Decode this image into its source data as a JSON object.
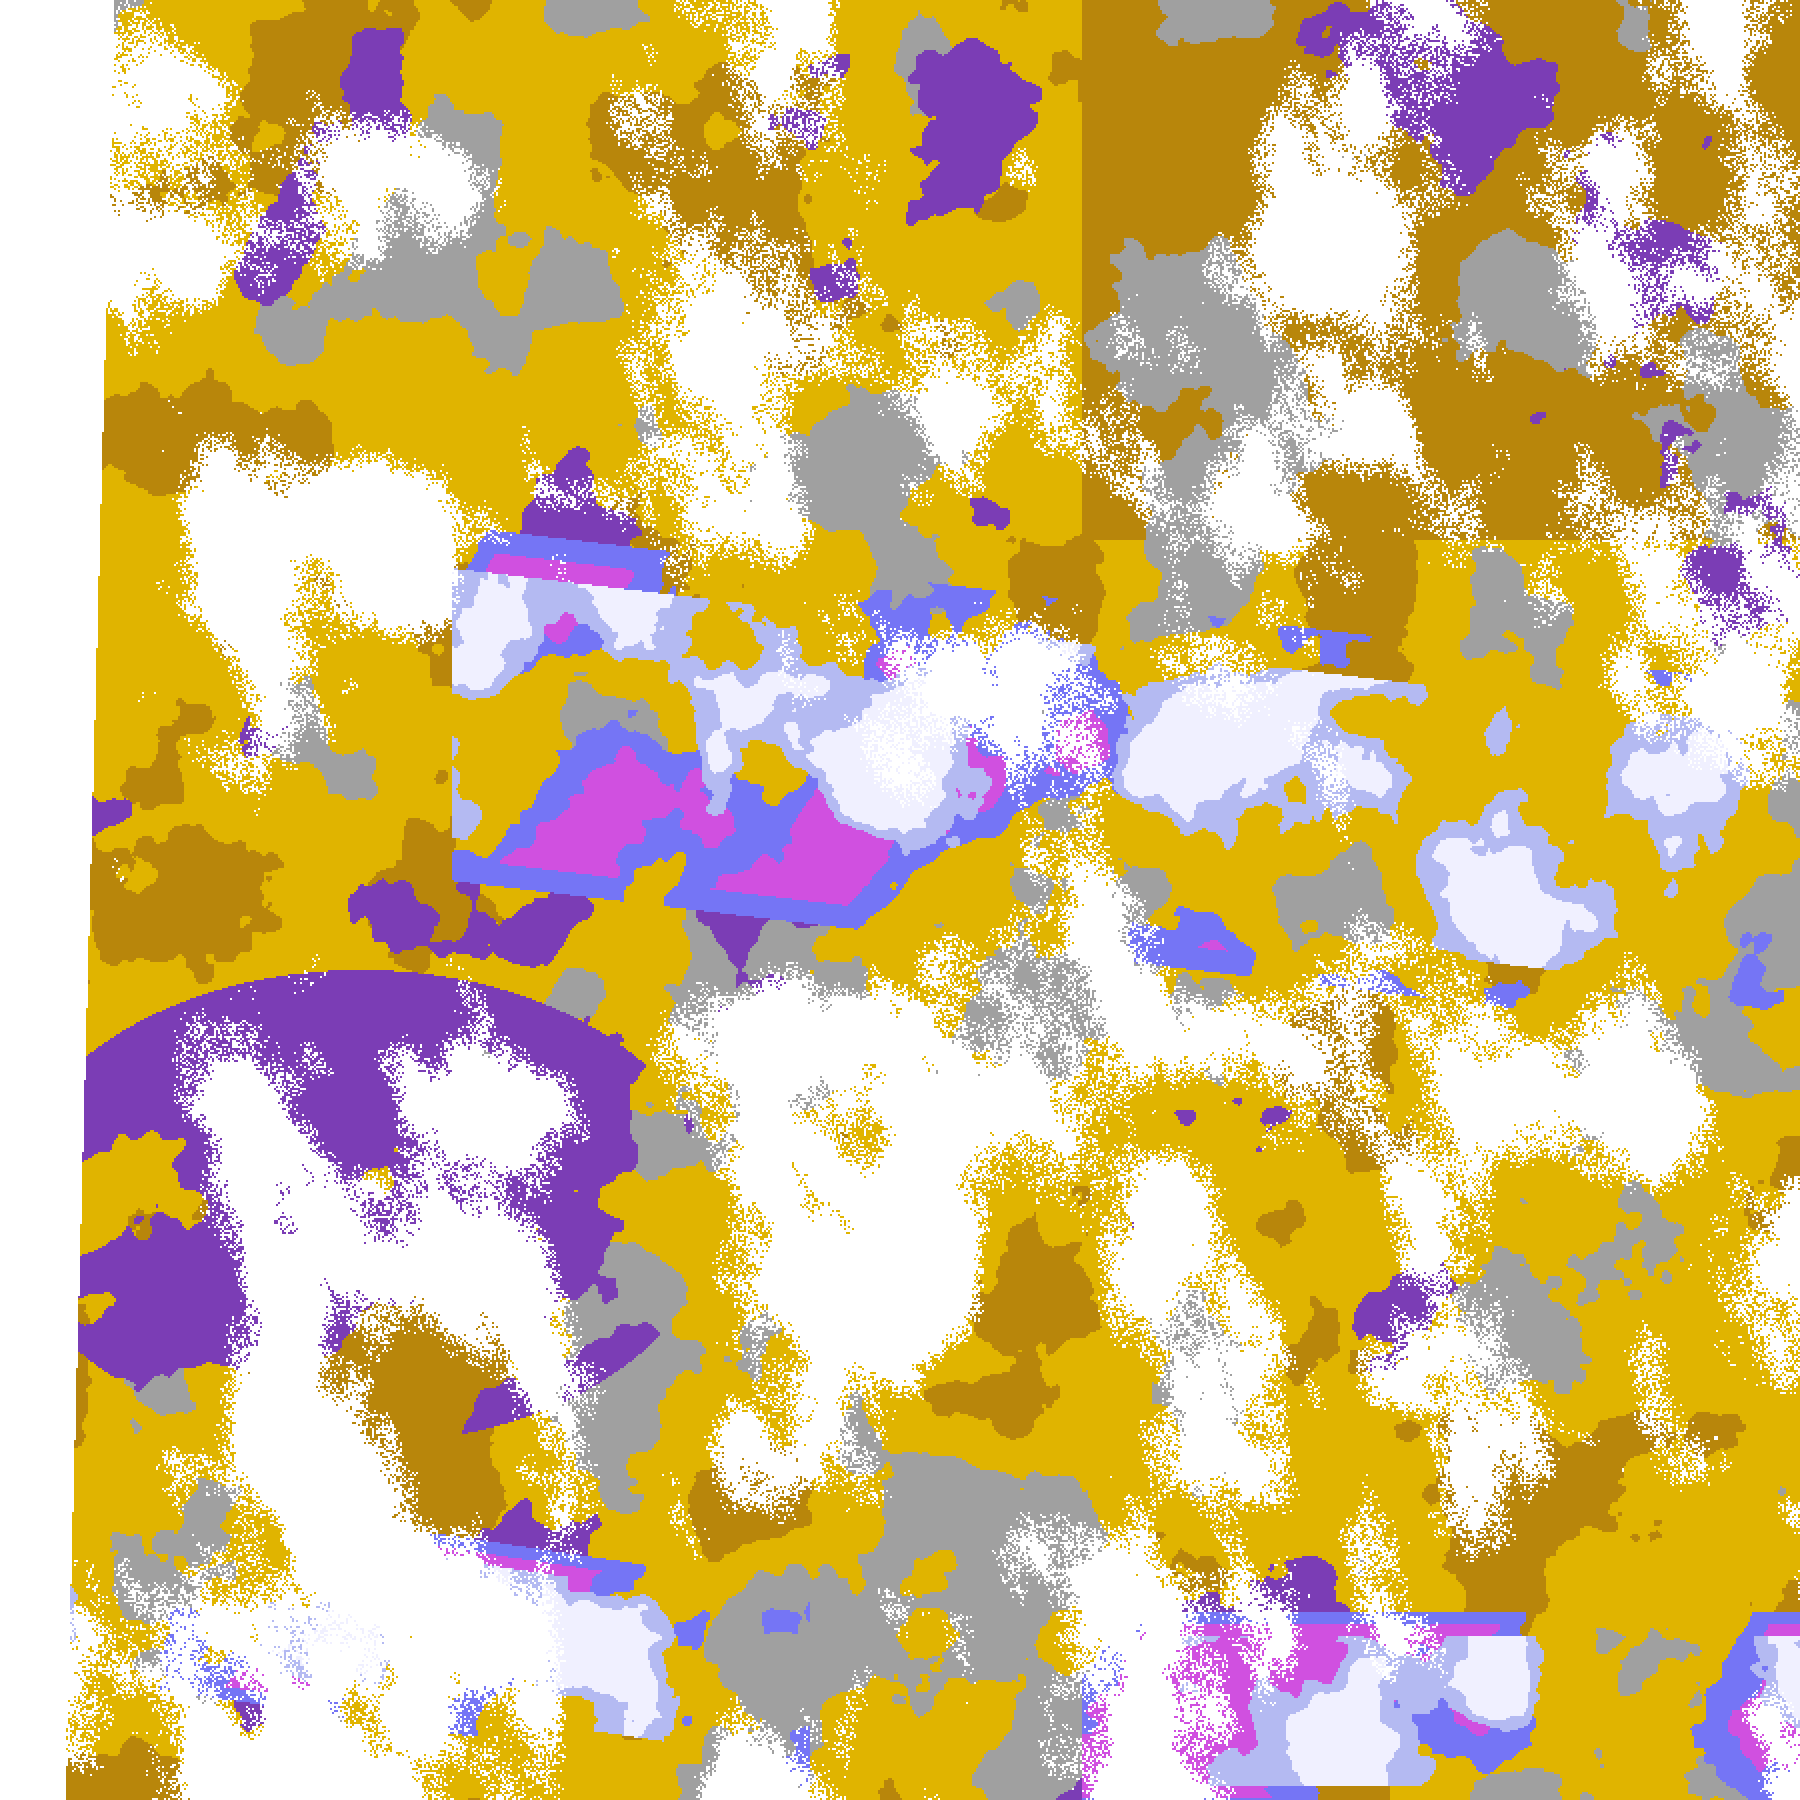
{
  "image": {
    "kind": "satellite cloud-type classification map",
    "palette": {
      "clear": "#ffffff",
      "gold": "#e0b400",
      "dark_gold": "#b8860b",
      "purple": "#7b3db5",
      "blue": "#7575f5",
      "light_blue": "#b4baf2",
      "lavender": "#f0f0ff",
      "magenta": "#d050e0",
      "gray": "#a0a0a0"
    }
  }
}
